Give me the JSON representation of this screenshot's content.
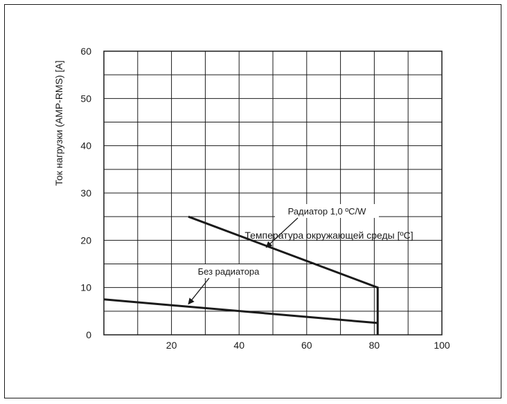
{
  "chart_data": {
    "type": "line",
    "xlabel": "Температура окружающей среды [ºC]",
    "ylabel": "Ток нагрузки (AMP-RMS) [A]",
    "xlim": [
      0,
      100
    ],
    "ylim": [
      0,
      60
    ],
    "x_ticks": [
      20,
      40,
      60,
      80,
      100
    ],
    "y_ticks": [
      0,
      10,
      20,
      30,
      40,
      50,
      60
    ],
    "grid": true,
    "x_grid_step": 10,
    "y_grid_step": 5,
    "series": [
      {
        "name": "Радиатор 1,0 ºC/W",
        "points": [
          [
            25,
            25
          ],
          [
            81,
            10
          ],
          [
            81,
            0
          ]
        ]
      },
      {
        "name": "Без радиатора",
        "points": [
          [
            0,
            7.5
          ],
          [
            81,
            2.5
          ]
        ]
      }
    ],
    "annotations": [
      {
        "text": "Радиатор 1,0 ºC/W",
        "points_to": [
          48,
          18.5
        ]
      },
      {
        "text": "Без радиатора",
        "points_to": [
          25,
          6.5
        ]
      }
    ],
    "colors": {
      "line": "#1a1a1a",
      "grid": "#1a1a1a",
      "background": "#ffffff"
    }
  }
}
